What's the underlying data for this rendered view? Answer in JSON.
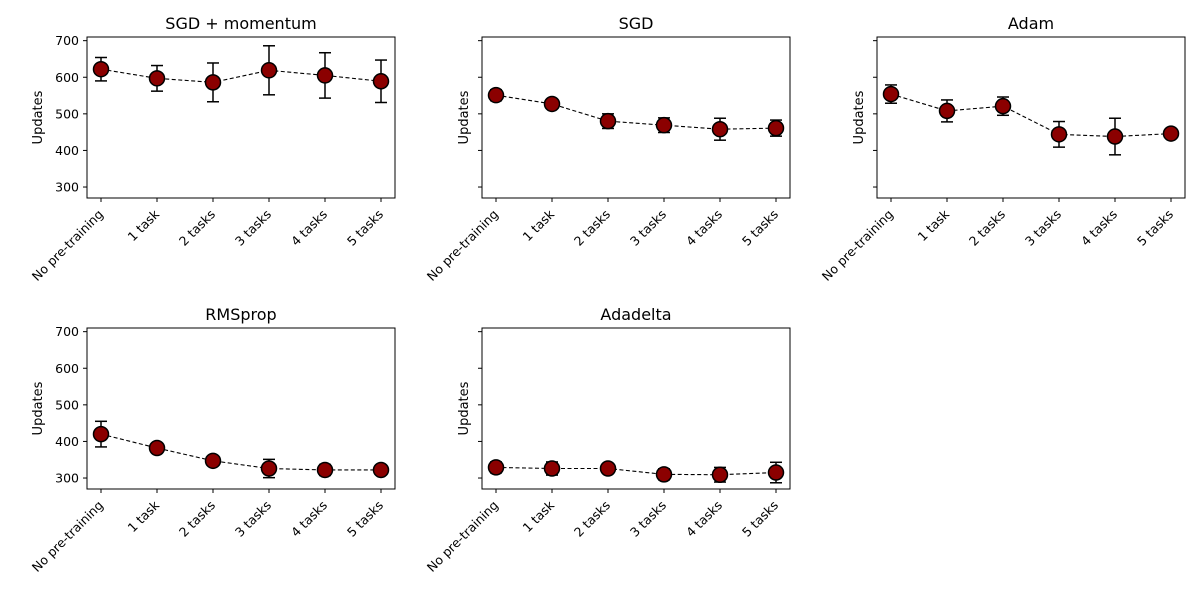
{
  "chart_data": [
    {
      "type": "line",
      "title": "SGD + momentum",
      "ylabel": "Updates",
      "categories": [
        "No pre-training",
        "1 task",
        "2 tasks",
        "3 tasks",
        "4 tasks",
        "5 tasks"
      ],
      "values": [
        622,
        597,
        586,
        619,
        605,
        589
      ],
      "errors": [
        32,
        35,
        53,
        67,
        62,
        58
      ],
      "ylim": [
        270,
        710
      ],
      "yticks": [
        300,
        400,
        500,
        600,
        700
      ]
    },
    {
      "type": "line",
      "title": "SGD",
      "ylabel": "Updates",
      "categories": [
        "No pre-training",
        "1 task",
        "2 tasks",
        "3 tasks",
        "4 tasks",
        "5 tasks"
      ],
      "values": [
        551,
        527,
        480,
        469,
        458,
        461
      ],
      "errors": [
        15,
        12,
        20,
        20,
        30,
        22
      ],
      "ylim": [
        270,
        710
      ],
      "yticks": [
        300,
        400,
        500,
        600,
        700
      ]
    },
    {
      "type": "line",
      "title": "Adam",
      "ylabel": "Updates",
      "categories": [
        "No pre-training",
        "1 task",
        "2 tasks",
        "3 tasks",
        "4 tasks",
        "5 tasks"
      ],
      "values": [
        554,
        508,
        521,
        444,
        438,
        446
      ],
      "errors": [
        25,
        30,
        25,
        35,
        50,
        8
      ],
      "ylim": [
        270,
        710
      ],
      "yticks": [
        300,
        400,
        500,
        600,
        700
      ]
    },
    {
      "type": "line",
      "title": "RMSprop",
      "ylabel": "Updates",
      "categories": [
        "No pre-training",
        "1 task",
        "2 tasks",
        "3 tasks",
        "4 tasks",
        "5 tasks"
      ],
      "values": [
        420,
        382,
        347,
        326,
        322,
        322
      ],
      "errors": [
        35,
        12,
        12,
        25,
        15,
        12
      ],
      "ylim": [
        270,
        710
      ],
      "yticks": [
        300,
        400,
        500,
        600,
        700
      ]
    },
    {
      "type": "line",
      "title": "Adadelta",
      "ylabel": "Updates",
      "categories": [
        "No pre-training",
        "1 task",
        "2 tasks",
        "3 tasks",
        "4 tasks",
        "5 tasks"
      ],
      "values": [
        329,
        326,
        326,
        310,
        309,
        315
      ],
      "errors": [
        15,
        18,
        12,
        15,
        20,
        28
      ],
      "ylim": [
        270,
        710
      ],
      "yticks": [
        300,
        400,
        500,
        600,
        700
      ]
    }
  ],
  "colors": {
    "marker_fill": "#8b0000",
    "marker_edge": "#000000",
    "line": "#000000"
  }
}
